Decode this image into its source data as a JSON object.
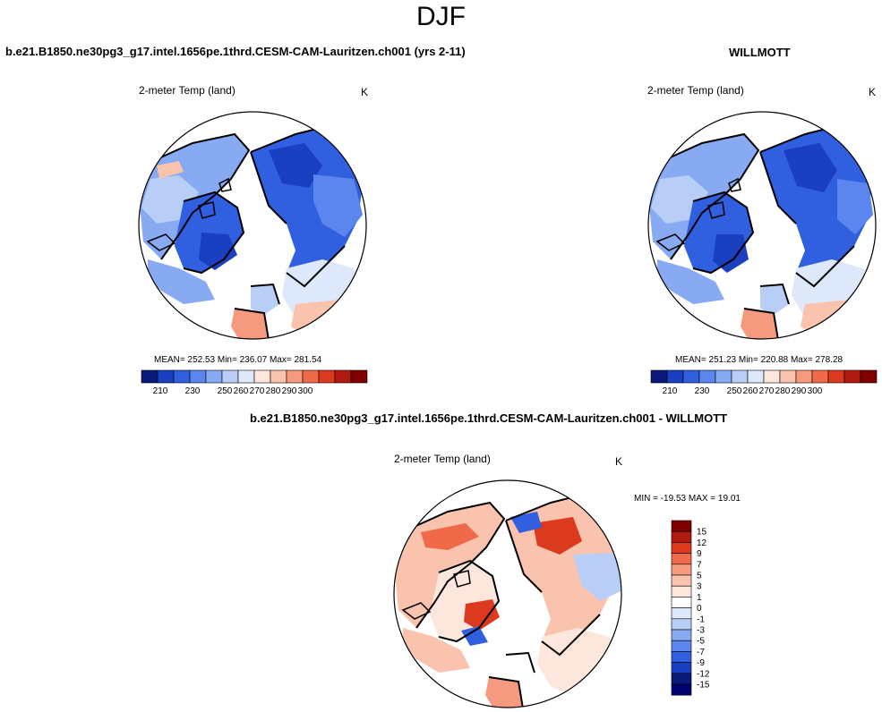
{
  "figure": {
    "season": "DJF"
  },
  "panels": [
    {
      "case_title": "b.e21.B1850.ne30pg3_g17.intel.1656pe.1thrd.CESM-CAM-Lauritzen.ch001 (yrs 2-11)",
      "variable": "2-meter Temp (land)",
      "units": "K",
      "stats": "MEAN= 252.53  Min= 236.07  Max= 281.54",
      "colorbar_ticks": [
        "210",
        "230",
        "250",
        "260",
        "270",
        "280",
        "290",
        "300"
      ]
    },
    {
      "case_title": "WILLMOTT",
      "variable": "2-meter Temp (land)",
      "units": "K",
      "stats": "MEAN= 251.23  Min= 220.88  Max= 278.28",
      "colorbar_ticks": [
        "210",
        "230",
        "250",
        "260",
        "270",
        "280",
        "290",
        "300"
      ]
    },
    {
      "case_title": "b.e21.B1850.ne30pg3_g17.intel.1656pe.1thrd.CESM-CAM-Lauritzen.ch001 - WILLMOTT",
      "variable": "2-meter Temp (land)",
      "units": "K",
      "stats": "MIN = -19.53 MAX =  19.01",
      "colorbar_ticks": [
        "15",
        "12",
        "9",
        "7",
        "5",
        "3",
        "1",
        "0",
        "-1",
        "-3",
        "-5",
        "-7",
        "-9",
        "-12",
        "-15"
      ]
    }
  ],
  "colors": {
    "abs_scale": [
      "#0a1a7a",
      "#1a3fc0",
      "#3060e0",
      "#5a86ee",
      "#88aaf2",
      "#b8cef6",
      "#dde8fb",
      "#fde6dc",
      "#f9c3ad",
      "#f59a7e",
      "#f06a4a",
      "#dc3a1e",
      "#b01a10",
      "#800000"
    ],
    "diff_scale": [
      "#800000",
      "#b01a10",
      "#dc3a1e",
      "#f06a4a",
      "#f59a7e",
      "#f9c3ad",
      "#fde6dc",
      "#ffffff",
      "#dde8fb",
      "#b8cef6",
      "#88aaf2",
      "#5a86ee",
      "#3060e0",
      "#1a3fc0",
      "#0a1a7a",
      "#00006e"
    ]
  }
}
